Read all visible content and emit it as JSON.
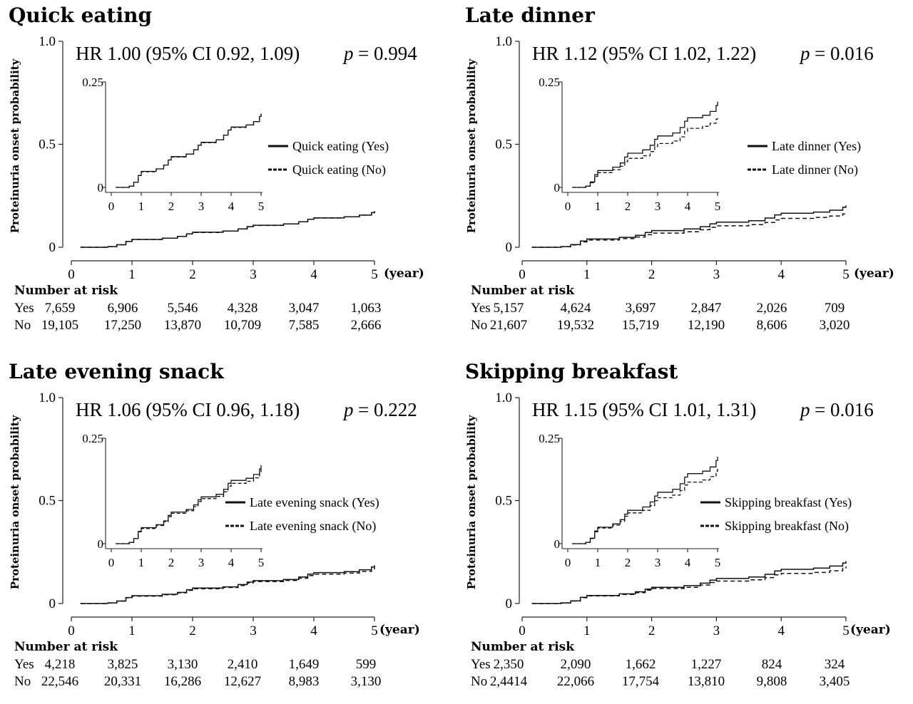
{
  "chart_data": [
    {
      "type": "line",
      "title": "Quick eating",
      "hr_text": "HR 1.00 (95% CI 0.92, 1.09)",
      "p_label": "p",
      "p_value": "= 0.994",
      "ylabel": "Proteinuria onset probability",
      "xunit": "(year)",
      "x_ticks": [
        "0",
        "1",
        "2",
        "3",
        "4",
        "5"
      ],
      "y_ticks": [
        "0",
        "0.5",
        "1.0"
      ],
      "inset_x_ticks": [
        "0",
        "1",
        "2",
        "3",
        "4",
        "5"
      ],
      "inset_y_ticks": [
        "0",
        "0.25"
      ],
      "xlim": [
        0,
        5
      ],
      "ylim": [
        0,
        1.0
      ],
      "inset_ylim": [
        0,
        0.25
      ],
      "legend": [
        "Quick eating (Yes)",
        "Quick eating (No)"
      ],
      "series": [
        {
          "name": "Quick eating (Yes)",
          "style": "solid",
          "x": [
            0.15,
            0.6,
            0.75,
            0.9,
            1.0,
            1.5,
            1.75,
            1.9,
            2.0,
            2.5,
            2.75,
            2.9,
            3.0,
            3.5,
            3.75,
            3.9,
            4.0,
            4.5,
            4.75,
            4.95,
            5.0
          ],
          "y": [
            0.0,
            0.003,
            0.012,
            0.028,
            0.038,
            0.044,
            0.053,
            0.065,
            0.073,
            0.079,
            0.089,
            0.1,
            0.107,
            0.113,
            0.124,
            0.136,
            0.143,
            0.148,
            0.156,
            0.168,
            0.175
          ]
        },
        {
          "name": "Quick eating (No)",
          "style": "dashed",
          "x": [
            0.15,
            0.6,
            0.75,
            0.9,
            1.0,
            1.5,
            1.75,
            1.9,
            2.0,
            2.5,
            2.75,
            2.9,
            3.0,
            3.5,
            3.75,
            3.9,
            4.0,
            4.5,
            4.75,
            4.95,
            5.0
          ],
          "y": [
            0.0,
            0.003,
            0.012,
            0.028,
            0.037,
            0.044,
            0.053,
            0.065,
            0.072,
            0.079,
            0.089,
            0.1,
            0.106,
            0.113,
            0.124,
            0.136,
            0.142,
            0.148,
            0.156,
            0.167,
            0.173
          ]
        }
      ],
      "risk_table": {
        "header": "Number at risk",
        "rows": [
          {
            "label": "Yes",
            "values": [
              "7,659",
              "6,906",
              "5,546",
              "4,328",
              "3,047",
              "1,063"
            ]
          },
          {
            "label": "No",
            "values": [
              "19,105",
              "17,250",
              "13,870",
              "10,709",
              "7,585",
              "2,666"
            ]
          }
        ]
      }
    },
    {
      "type": "line",
      "title": "Late dinner",
      "hr_text": "HR 1.12 (95% CI 1.02, 1.22)",
      "p_label": "p",
      "p_value": "= 0.016",
      "ylabel": "Proteinuria onset probability",
      "xunit": "(year)",
      "x_ticks": [
        "0",
        "1",
        "2",
        "3",
        "4",
        "5"
      ],
      "y_ticks": [
        "0",
        "0.5",
        "1.0"
      ],
      "inset_x_ticks": [
        "0",
        "1",
        "2",
        "3",
        "4",
        "5"
      ],
      "inset_y_ticks": [
        "0",
        "0.25"
      ],
      "xlim": [
        0,
        5
      ],
      "ylim": [
        0,
        1.0
      ],
      "inset_ylim": [
        0,
        0.25
      ],
      "legend": [
        "Late dinner (Yes)",
        "Late dinner (No)"
      ],
      "series": [
        {
          "name": "Late dinner (Yes)",
          "style": "solid",
          "x": [
            0.15,
            0.6,
            0.75,
            0.9,
            1.0,
            1.5,
            1.75,
            1.9,
            2.0,
            2.5,
            2.75,
            2.9,
            3.0,
            3.5,
            3.75,
            3.9,
            4.0,
            4.5,
            4.75,
            4.95,
            5.0
          ],
          "y": [
            0.0,
            0.003,
            0.013,
            0.03,
            0.04,
            0.048,
            0.058,
            0.072,
            0.081,
            0.089,
            0.1,
            0.114,
            0.122,
            0.129,
            0.142,
            0.157,
            0.165,
            0.171,
            0.18,
            0.194,
            0.203
          ]
        },
        {
          "name": "Late dinner (No)",
          "style": "dashed",
          "x": [
            0.15,
            0.6,
            0.75,
            0.9,
            1.0,
            1.5,
            1.75,
            1.9,
            2.0,
            2.5,
            2.75,
            2.9,
            3.0,
            3.5,
            3.75,
            3.9,
            4.0,
            4.5,
            4.75,
            4.95,
            5.0
          ],
          "y": [
            0.0,
            0.003,
            0.011,
            0.026,
            0.035,
            0.042,
            0.05,
            0.061,
            0.069,
            0.075,
            0.085,
            0.097,
            0.104,
            0.11,
            0.12,
            0.133,
            0.14,
            0.145,
            0.152,
            0.162,
            0.168
          ]
        }
      ],
      "risk_table": {
        "header": "Number at risk",
        "rows": [
          {
            "label": "Yes",
            "values": [
              "5,157",
              "4,624",
              "3,697",
              "2,847",
              "2,026",
              "709"
            ]
          },
          {
            "label": "No",
            "values": [
              "21,607",
              "19,532",
              "15,719",
              "12,190",
              "8,606",
              "3,020"
            ]
          }
        ]
      }
    },
    {
      "type": "line",
      "title": "Late evening snack",
      "hr_text": "HR 1.06 (95% CI 0.96, 1.18)",
      "p_label": "p",
      "p_value": "= 0.222",
      "ylabel": "Proteinuria onset probability",
      "xunit": "(year)",
      "x_ticks": [
        "0",
        "1",
        "2",
        "3",
        "4",
        "5"
      ],
      "y_ticks": [
        "0",
        "0.5",
        "1.0"
      ],
      "inset_x_ticks": [
        "0",
        "1",
        "2",
        "3",
        "4",
        "5"
      ],
      "inset_y_ticks": [
        "0",
        "0.25"
      ],
      "xlim": [
        0,
        5
      ],
      "ylim": [
        0,
        1.0
      ],
      "inset_ylim": [
        0,
        0.25
      ],
      "legend": [
        "Late evening snack (Yes)",
        "Late evening snack (No)"
      ],
      "series": [
        {
          "name": "Late evening snack (Yes)",
          "style": "solid",
          "x": [
            0.15,
            0.6,
            0.75,
            0.9,
            1.0,
            1.5,
            1.75,
            1.9,
            2.0,
            2.5,
            2.75,
            2.9,
            3.0,
            3.5,
            3.75,
            3.9,
            4.0,
            4.5,
            4.75,
            4.95,
            5.0
          ],
          "y": [
            0.0,
            0.003,
            0.012,
            0.029,
            0.038,
            0.045,
            0.054,
            0.067,
            0.075,
            0.081,
            0.092,
            0.104,
            0.111,
            0.117,
            0.129,
            0.143,
            0.15,
            0.155,
            0.164,
            0.177,
            0.186
          ]
        },
        {
          "name": "Late evening snack (No)",
          "style": "dashed",
          "x": [
            0.15,
            0.6,
            0.75,
            0.9,
            1.0,
            1.5,
            1.75,
            1.9,
            2.0,
            2.5,
            2.75,
            2.9,
            3.0,
            3.5,
            3.75,
            3.9,
            4.0,
            4.5,
            4.75,
            4.95,
            5.0
          ],
          "y": [
            0.0,
            0.003,
            0.012,
            0.028,
            0.036,
            0.043,
            0.052,
            0.064,
            0.072,
            0.078,
            0.088,
            0.1,
            0.107,
            0.112,
            0.123,
            0.136,
            0.143,
            0.148,
            0.156,
            0.168,
            0.176
          ]
        }
      ],
      "risk_table": {
        "header": "Number at risk",
        "rows": [
          {
            "label": "Yes",
            "values": [
              "4,218",
              "3,825",
              "3,130",
              "2,410",
              "1,649",
              "599"
            ]
          },
          {
            "label": "No",
            "values": [
              "22,546",
              "20,331",
              "16,286",
              "12,627",
              "8,983",
              "3,130"
            ]
          }
        ]
      }
    },
    {
      "type": "line",
      "title": "Skipping breakfast",
      "hr_text": "HR 1.15 (95% CI 1.01, 1.31)",
      "p_label": "p",
      "p_value": "= 0.016",
      "ylabel": "Proteinuria onset probability",
      "xunit": "(year)",
      "x_ticks": [
        "0",
        "1",
        "2",
        "3",
        "4",
        "5"
      ],
      "y_ticks": [
        "0",
        "0.5",
        "1.0"
      ],
      "inset_x_ticks": [
        "0",
        "1",
        "2",
        "3",
        "4",
        "5"
      ],
      "inset_y_ticks": [
        "0",
        "0.25"
      ],
      "xlim": [
        0,
        5
      ],
      "ylim": [
        0,
        1.0
      ],
      "inset_ylim": [
        0,
        0.25
      ],
      "legend": [
        "Skipping breakfast (Yes)",
        "Skipping breakfast (No)"
      ],
      "series": [
        {
          "name": "Skipping breakfast (Yes)",
          "style": "solid",
          "x": [
            0.15,
            0.6,
            0.75,
            0.9,
            1.0,
            1.5,
            1.75,
            1.9,
            2.0,
            2.5,
            2.75,
            2.9,
            3.0,
            3.5,
            3.75,
            3.9,
            4.0,
            4.5,
            4.75,
            4.95,
            5.0
          ],
          "y": [
            0.0,
            0.003,
            0.013,
            0.03,
            0.039,
            0.047,
            0.057,
            0.07,
            0.079,
            0.087,
            0.099,
            0.113,
            0.122,
            0.129,
            0.142,
            0.158,
            0.166,
            0.172,
            0.182,
            0.197,
            0.206
          ]
        },
        {
          "name": "Skipping breakfast (No)",
          "style": "dashed",
          "x": [
            0.15,
            0.6,
            0.75,
            0.9,
            1.0,
            1.5,
            1.75,
            1.9,
            2.0,
            2.5,
            2.75,
            2.9,
            3.0,
            3.5,
            3.75,
            3.9,
            4.0,
            4.5,
            4.75,
            4.95,
            5.0
          ],
          "y": [
            0.0,
            0.003,
            0.012,
            0.028,
            0.037,
            0.044,
            0.053,
            0.065,
            0.073,
            0.079,
            0.09,
            0.102,
            0.109,
            0.115,
            0.126,
            0.139,
            0.146,
            0.151,
            0.159,
            0.172,
            0.18
          ]
        }
      ],
      "risk_table": {
        "header": "Number at risk",
        "rows": [
          {
            "label": "Yes",
            "values": [
              "2,350",
              "2,090",
              "1,662",
              "1,227",
              "824",
              "324"
            ]
          },
          {
            "label": "No",
            "values": [
              "2,4414",
              "22,066",
              "17,754",
              "13,810",
              "9,808",
              "3,405"
            ]
          }
        ]
      }
    }
  ]
}
